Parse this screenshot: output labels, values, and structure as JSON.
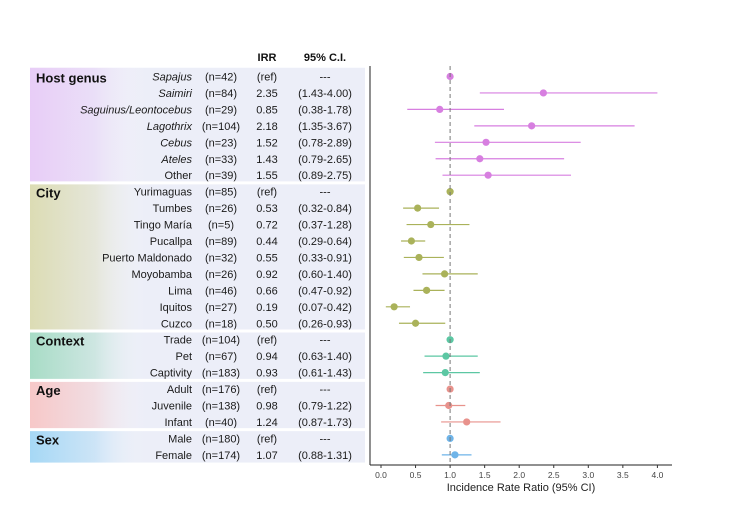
{
  "chart_data": {
    "type": "forest",
    "xlabel": "Incidence Rate Ratio (95% CI)",
    "xlim": [
      -0.15,
      4.1
    ],
    "xticks": [
      0.0,
      0.5,
      1.0,
      1.5,
      2.0,
      2.5,
      3.0,
      3.5,
      4.0
    ],
    "xtick_labels": [
      "0.0",
      "0.5",
      "1.0",
      "1.5",
      "2.0",
      "2.5",
      "3.0",
      "3.5",
      "4.0"
    ],
    "reference_line": 1.0,
    "column_headers": {
      "irr": "IRR",
      "ci": "95% C.I."
    },
    "groups": [
      {
        "name": "Host genus",
        "color": "#d77fe0",
        "bg": "#e8cdf7",
        "rows": [
          {
            "label": "Sapajus",
            "italic": true,
            "n": "(n=42)",
            "irr": "(ref)",
            "ci": "---",
            "value": 1.0,
            "lo": null,
            "hi": null
          },
          {
            "label": "Saimiri",
            "italic": true,
            "n": "(n=84)",
            "irr": "2.35",
            "ci": "(1.43-4.00)",
            "value": 2.35,
            "lo": 1.43,
            "hi": 4.0
          },
          {
            "label": "Saguinus/Leontocebus",
            "italic": true,
            "n": "(n=29)",
            "irr": "0.85",
            "ci": "(0.38-1.78)",
            "value": 0.85,
            "lo": 0.38,
            "hi": 1.78
          },
          {
            "label": "Lagothrix",
            "italic": true,
            "n": "(n=104)",
            "irr": "2.18",
            "ci": "(1.35-3.67)",
            "value": 2.18,
            "lo": 1.35,
            "hi": 3.67
          },
          {
            "label": "Cebus",
            "italic": true,
            "n": "(n=23)",
            "irr": "1.52",
            "ci": "(0.78-2.89)",
            "value": 1.52,
            "lo": 0.78,
            "hi": 2.89
          },
          {
            "label": "Ateles",
            "italic": true,
            "n": "(n=33)",
            "irr": "1.43",
            "ci": "(0.79-2.65)",
            "value": 1.43,
            "lo": 0.79,
            "hi": 2.65
          },
          {
            "label": "Other",
            "italic": false,
            "n": "(n=39)",
            "irr": "1.55",
            "ci": "(0.89-2.75)",
            "value": 1.55,
            "lo": 0.89,
            "hi": 2.75
          }
        ]
      },
      {
        "name": "City",
        "color": "#aab25a",
        "bg": "#dcdcb4",
        "rows": [
          {
            "label": "Yurimaguas",
            "italic": false,
            "n": "(n=85)",
            "irr": "(ref)",
            "ci": "---",
            "value": 1.0,
            "lo": null,
            "hi": null
          },
          {
            "label": "Tumbes",
            "italic": false,
            "n": "(n=26)",
            "irr": "0.53",
            "ci": "(0.32-0.84)",
            "value": 0.53,
            "lo": 0.32,
            "hi": 0.84
          },
          {
            "label": "Tingo María",
            "italic": false,
            "n": "(n=5)",
            "irr": "0.72",
            "ci": "(0.37-1.28)",
            "value": 0.72,
            "lo": 0.37,
            "hi": 1.28
          },
          {
            "label": "Pucallpa",
            "italic": false,
            "n": "(n=89)",
            "irr": "0.44",
            "ci": "(0.29-0.64)",
            "value": 0.44,
            "lo": 0.29,
            "hi": 0.64
          },
          {
            "label": "Puerto Maldonado",
            "italic": false,
            "n": "(n=32)",
            "irr": "0.55",
            "ci": "(0.33-0.91)",
            "value": 0.55,
            "lo": 0.33,
            "hi": 0.91
          },
          {
            "label": "Moyobamba",
            "italic": false,
            "n": "(n=26)",
            "irr": "0.92",
            "ci": "(0.60-1.40)",
            "value": 0.92,
            "lo": 0.6,
            "hi": 1.4
          },
          {
            "label": "Lima",
            "italic": false,
            "n": "(n=46)",
            "irr": "0.66",
            "ci": "(0.47-0.92)",
            "value": 0.66,
            "lo": 0.47,
            "hi": 0.92
          },
          {
            "label": "Iquitos",
            "italic": false,
            "n": "(n=27)",
            "irr": "0.19",
            "ci": "(0.07-0.42)",
            "value": 0.19,
            "lo": 0.07,
            "hi": 0.42
          },
          {
            "label": "Cuzco",
            "italic": false,
            "n": "(n=18)",
            "irr": "0.50",
            "ci": "(0.26-0.93)",
            "value": 0.5,
            "lo": 0.26,
            "hi": 0.93
          }
        ]
      },
      {
        "name": "Context",
        "color": "#5cc7a3",
        "bg": "#a8dcc6",
        "rows": [
          {
            "label": "Trade",
            "italic": false,
            "n": "(n=104)",
            "irr": "(ref)",
            "ci": "---",
            "value": 1.0,
            "lo": null,
            "hi": null
          },
          {
            "label": "Pet",
            "italic": false,
            "n": "(n=67)",
            "irr": "0.94",
            "ci": "(0.63-1.40)",
            "value": 0.94,
            "lo": 0.63,
            "hi": 1.4
          },
          {
            "label": "Captivity",
            "italic": false,
            "n": "(n=183)",
            "irr": "0.93",
            "ci": "(0.61-1.43)",
            "value": 0.93,
            "lo": 0.61,
            "hi": 1.43
          }
        ]
      },
      {
        "name": "Age",
        "color": "#e8928c",
        "bg": "#f7c8c8",
        "rows": [
          {
            "label": "Adult",
            "italic": false,
            "n": "(n=176)",
            "irr": "(ref)",
            "ci": "---",
            "value": 1.0,
            "lo": null,
            "hi": null
          },
          {
            "label": "Juvenile",
            "italic": false,
            "n": "(n=138)",
            "irr": "0.98",
            "ci": "(0.79-1.22)",
            "value": 0.98,
            "lo": 0.79,
            "hi": 1.22
          },
          {
            "label": "Infant",
            "italic": false,
            "n": "(n=40)",
            "irr": "1.24",
            "ci": "(0.87-1.73)",
            "value": 1.24,
            "lo": 0.87,
            "hi": 1.73
          }
        ]
      },
      {
        "name": "Sex",
        "color": "#6fb4e8",
        "bg": "#a6d8f5",
        "rows": [
          {
            "label": "Male",
            "italic": false,
            "n": "(n=180)",
            "irr": "(ref)",
            "ci": "---",
            "value": 1.0,
            "lo": null,
            "hi": null
          },
          {
            "label": "Female",
            "italic": false,
            "n": "(n=174)",
            "irr": "1.07",
            "ci": "(0.88-1.31)",
            "value": 1.07,
            "lo": 0.88,
            "hi": 1.31
          }
        ]
      }
    ]
  }
}
